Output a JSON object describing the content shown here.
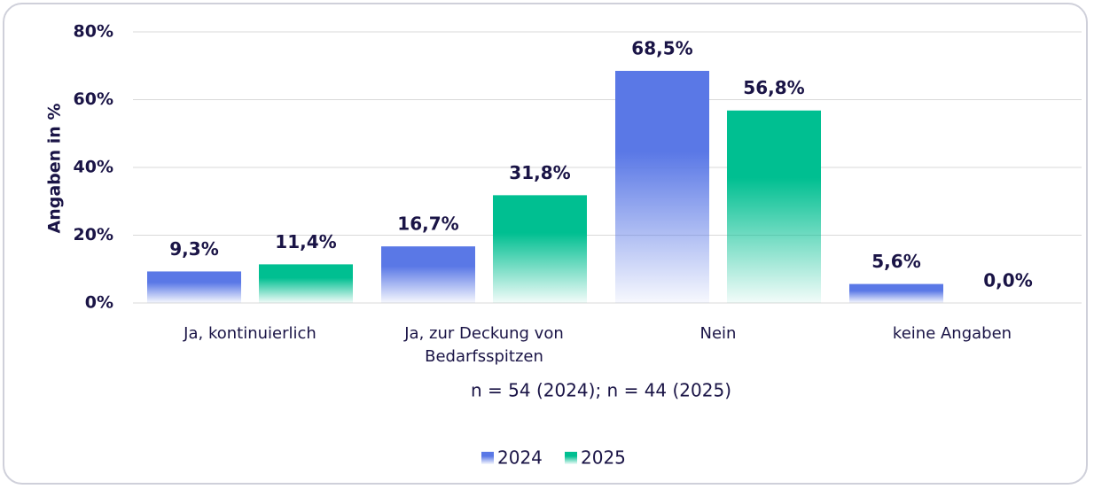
{
  "chart_data": {
    "type": "bar",
    "y_label": "Angaben in %",
    "annotation": "n = 54 (2024); n = 44 (2025)",
    "categories": [
      "Ja, kontinuierlich",
      "Ja, zur Deckung von Bedarfsspitzen",
      "Nein",
      "keine Angaben"
    ],
    "series": [
      {
        "name": "2024",
        "color": "#5a78e6",
        "values": [
          9.3,
          16.7,
          68.5,
          5.6
        ],
        "value_labels": [
          "9,3%",
          "16,7%",
          "68,5%",
          "5,6%"
        ]
      },
      {
        "name": "2025",
        "color": "#00bf91",
        "values": [
          11.4,
          31.8,
          56.8,
          0.0
        ],
        "value_labels": [
          "11,4%",
          "31,8%",
          "56,8%",
          "0,0%"
        ]
      }
    ],
    "ylim": [
      0,
      80
    ],
    "yticks": [
      {
        "value": 0,
        "label": "0%"
      },
      {
        "value": 20,
        "label": "20%"
      },
      {
        "value": 40,
        "label": "40%"
      },
      {
        "value": 60,
        "label": "60%"
      },
      {
        "value": 80,
        "label": "80%"
      }
    ],
    "grid": true,
    "legend": "bottom"
  }
}
